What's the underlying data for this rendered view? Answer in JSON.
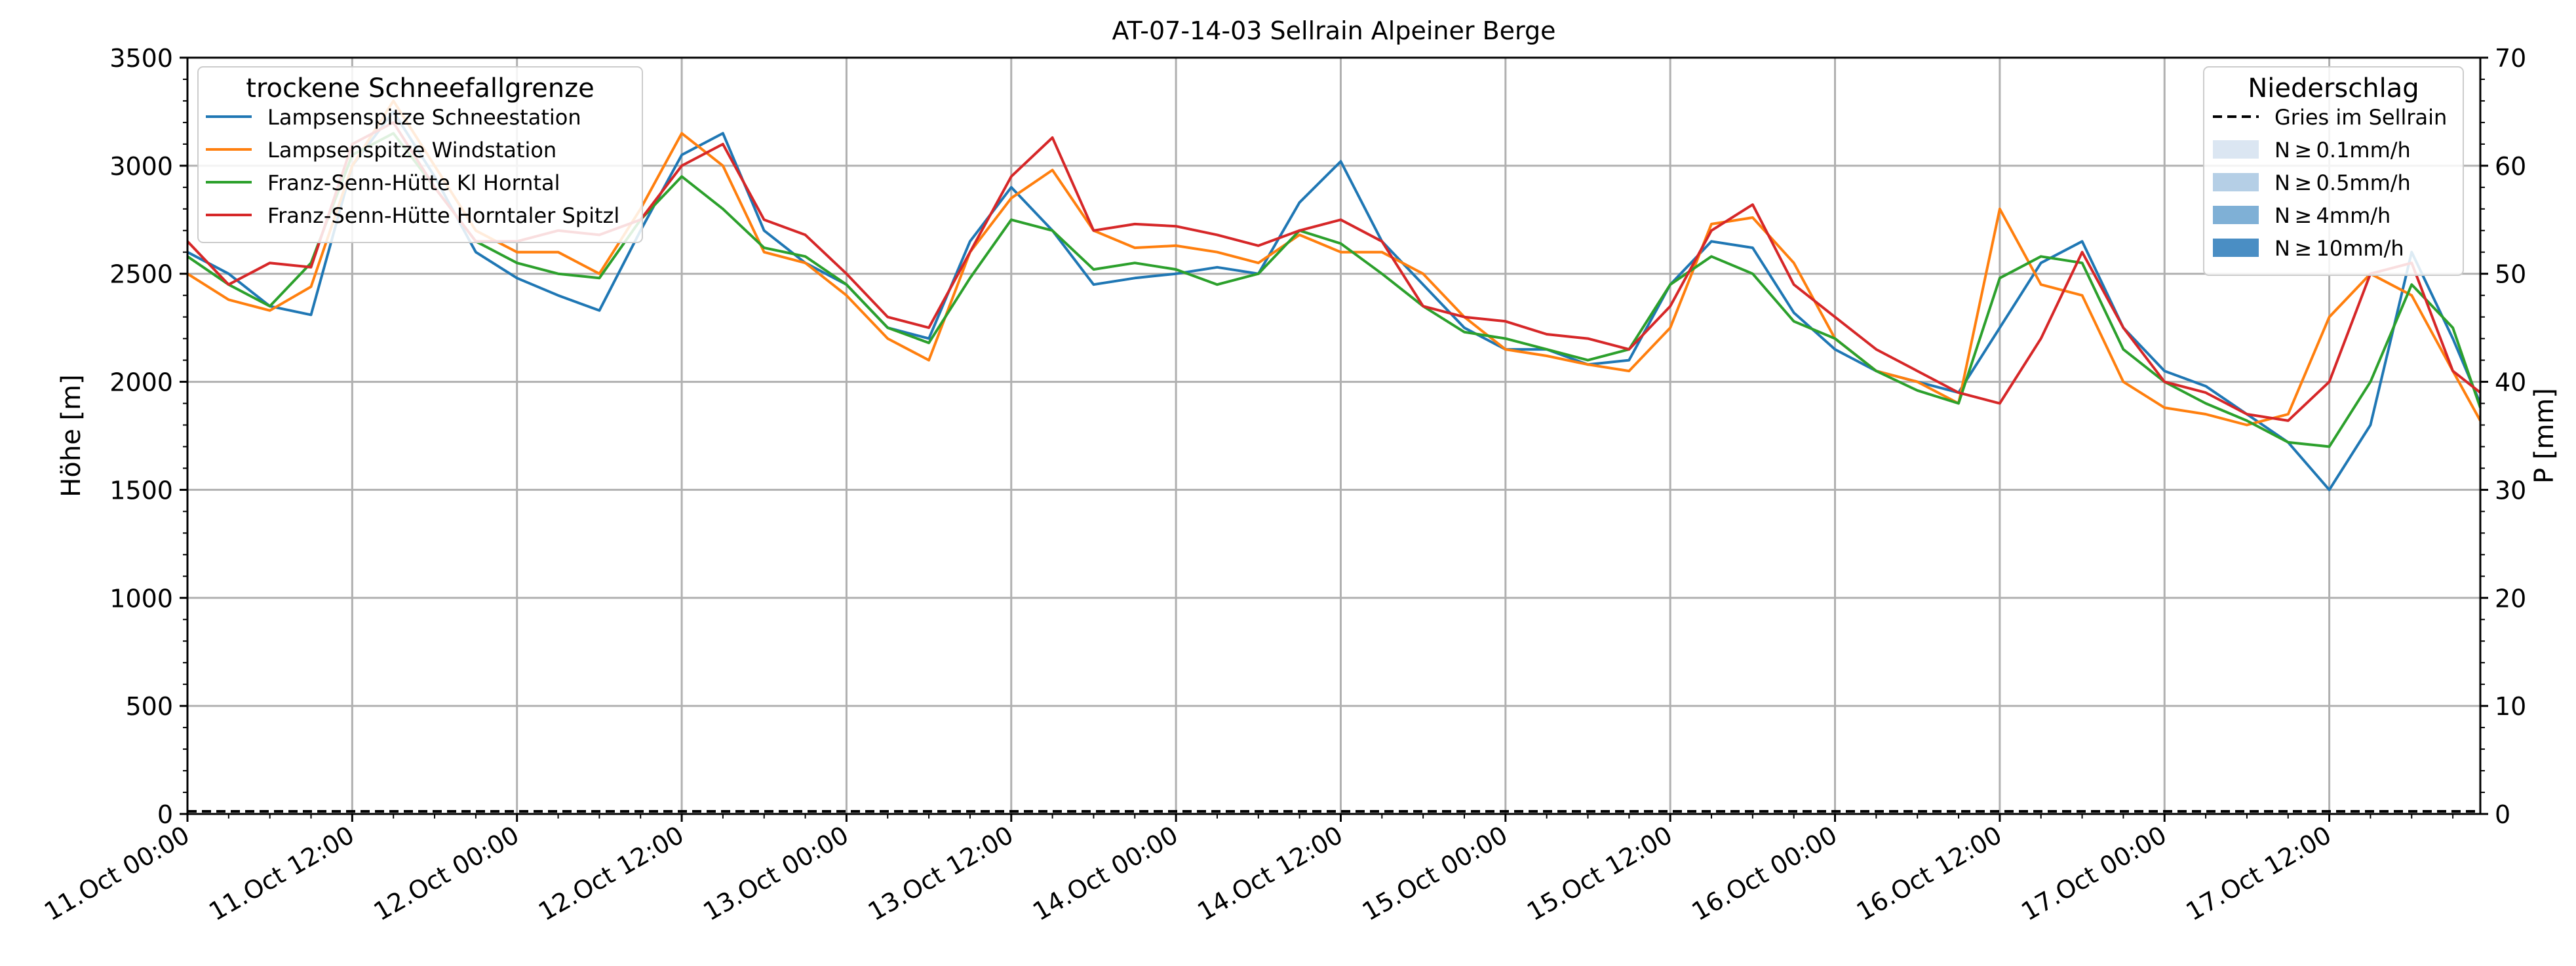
{
  "chart_data": {
    "type": "line",
    "title": "AT-07-14-03 Sellrain Alpeiner Berge",
    "ylabel": "Höhe [m]",
    "ylabel_right": "P [mm]",
    "ylim": [
      0,
      3500
    ],
    "ylim_right": [
      0,
      70
    ],
    "xlim": [
      "2023-10-11 00:00",
      "2023-10-17 23:00"
    ],
    "y_ticks": [
      "0",
      "500",
      "1000",
      "1500",
      "2000",
      "2500",
      "3000",
      "3500"
    ],
    "y_right_ticks": [
      "0",
      "10",
      "20",
      "30",
      "40",
      "50",
      "60",
      "70"
    ],
    "x_ticks": [
      "11.Oct 00:00",
      "11.Oct 12:00",
      "12.Oct 00:00",
      "12.Oct 12:00",
      "13.Oct 00:00",
      "13.Oct 12:00",
      "14.Oct 00:00",
      "14.Oct 12:00",
      "15.Oct 00:00",
      "15.Oct 12:00",
      "16.Oct 00:00",
      "16.Oct 12:00",
      "17.Oct 00:00",
      "17.Oct 12:00"
    ],
    "grid": true,
    "legend": {
      "title": "trockene Schneefallgrenze",
      "placement": "upper-left"
    },
    "legend_right": {
      "title": "Niederschlag",
      "placement": "upper-right",
      "items": [
        {
          "label": "Gries im Sellrain",
          "style": "dashed-line",
          "color": "#000000"
        },
        {
          "label": "N ≥ 0.1mm/h",
          "style": "patch",
          "color": "#dbe6f2"
        },
        {
          "label": "N ≥ 0.5mm/h",
          "style": "patch",
          "color": "#b5cfe6"
        },
        {
          "label": "N ≥ 4mm/h",
          "style": "patch",
          "color": "#7fb0d6"
        },
        {
          "label": "N ≥ 10mm/h",
          "style": "patch",
          "color": "#4a8ec4"
        }
      ]
    },
    "precipitation": {
      "name": "Gries im Sellrain",
      "x": [
        "2023-10-11 00:00",
        "2023-10-17 23:00"
      ],
      "values": [
        0,
        0
      ]
    },
    "series": [
      {
        "name": "Lampsenspitze Schneestation",
        "color": "#1f77b4",
        "x": [
          "2023-10-11 00:00",
          "2023-10-11 03:00",
          "2023-10-11 06:00",
          "2023-10-11 09:00",
          "2023-10-11 12:00",
          "2023-10-11 15:00",
          "2023-10-11 18:00",
          "2023-10-11 21:00",
          "2023-10-12 00:00",
          "2023-10-12 03:00",
          "2023-10-12 06:00",
          "2023-10-12 09:00",
          "2023-10-12 12:00",
          "2023-10-12 15:00",
          "2023-10-12 18:00",
          "2023-10-12 21:00",
          "2023-10-13 00:00",
          "2023-10-13 03:00",
          "2023-10-13 06:00",
          "2023-10-13 09:00",
          "2023-10-13 12:00",
          "2023-10-13 15:00",
          "2023-10-13 18:00",
          "2023-10-13 21:00",
          "2023-10-14 00:00",
          "2023-10-14 03:00",
          "2023-10-14 06:00",
          "2023-10-14 09:00",
          "2023-10-14 12:00",
          "2023-10-14 15:00",
          "2023-10-14 18:00",
          "2023-10-14 21:00",
          "2023-10-15 00:00",
          "2023-10-15 03:00",
          "2023-10-15 06:00",
          "2023-10-15 09:00",
          "2023-10-15 12:00",
          "2023-10-15 15:00",
          "2023-10-15 18:00",
          "2023-10-15 21:00",
          "2023-10-16 00:00",
          "2023-10-16 03:00",
          "2023-10-16 06:00",
          "2023-10-16 09:00",
          "2023-10-16 12:00",
          "2023-10-16 15:00",
          "2023-10-16 18:00",
          "2023-10-16 21:00",
          "2023-10-17 00:00",
          "2023-10-17 03:00",
          "2023-10-17 06:00",
          "2023-10-17 09:00",
          "2023-10-17 12:00",
          "2023-10-17 15:00",
          "2023-10-17 18:00",
          "2023-10-17 21:00",
          "2023-10-17 23:00"
        ],
        "values": [
          2600,
          2500,
          2350,
          2310,
          3000,
          3250,
          2950,
          2600,
          2480,
          2400,
          2330,
          2700,
          3050,
          3150,
          2700,
          2550,
          2450,
          2250,
          2200,
          2650,
          2900,
          2700,
          2450,
          2480,
          2500,
          2530,
          2500,
          2830,
          3020,
          2650,
          2450,
          2250,
          2150,
          2150,
          2080,
          2100,
          2450,
          2650,
          2620,
          2320,
          2150,
          2050,
          2000,
          1950,
          2250,
          2550,
          2650,
          2250,
          2050,
          1980,
          1850,
          1720,
          1500,
          1800,
          2600,
          2200,
          1900
        ]
      },
      {
        "name": "Lampsenspitze Windstation",
        "color": "#ff7f0e",
        "x": [
          "2023-10-11 00:00",
          "2023-10-11 03:00",
          "2023-10-11 06:00",
          "2023-10-11 09:00",
          "2023-10-11 12:00",
          "2023-10-11 15:00",
          "2023-10-11 18:00",
          "2023-10-11 21:00",
          "2023-10-12 00:00",
          "2023-10-12 03:00",
          "2023-10-12 06:00",
          "2023-10-12 09:00",
          "2023-10-12 12:00",
          "2023-10-12 15:00",
          "2023-10-12 18:00",
          "2023-10-12 21:00",
          "2023-10-13 00:00",
          "2023-10-13 03:00",
          "2023-10-13 06:00",
          "2023-10-13 09:00",
          "2023-10-13 12:00",
          "2023-10-13 15:00",
          "2023-10-13 18:00",
          "2023-10-13 21:00",
          "2023-10-14 00:00",
          "2023-10-14 03:00",
          "2023-10-14 06:00",
          "2023-10-14 09:00",
          "2023-10-14 12:00",
          "2023-10-14 15:00",
          "2023-10-14 18:00",
          "2023-10-14 21:00",
          "2023-10-15 00:00",
          "2023-10-15 03:00",
          "2023-10-15 06:00",
          "2023-10-15 09:00",
          "2023-10-15 12:00",
          "2023-10-15 15:00",
          "2023-10-15 18:00",
          "2023-10-15 21:00",
          "2023-10-16 00:00",
          "2023-10-16 03:00",
          "2023-10-16 06:00",
          "2023-10-16 09:00",
          "2023-10-16 12:00",
          "2023-10-16 15:00",
          "2023-10-16 18:00",
          "2023-10-16 21:00",
          "2023-10-17 00:00",
          "2023-10-17 03:00",
          "2023-10-17 06:00",
          "2023-10-17 09:00",
          "2023-10-17 12:00",
          "2023-10-17 15:00",
          "2023-10-17 18:00",
          "2023-10-17 21:00",
          "2023-10-17 23:00"
        ],
        "values": [
          2500,
          2380,
          2330,
          2440,
          3000,
          3300,
          3000,
          2700,
          2600,
          2600,
          2500,
          2800,
          3150,
          3000,
          2600,
          2550,
          2400,
          2200,
          2100,
          2600,
          2850,
          2980,
          2700,
          2620,
          2630,
          2600,
          2550,
          2680,
          2600,
          2600,
          2500,
          2300,
          2150,
          2120,
          2080,
          2050,
          2250,
          2730,
          2760,
          2550,
          2200,
          2050,
          2000,
          1900,
          2800,
          2450,
          2400,
          2000,
          1880,
          1850,
          1800,
          1850,
          2300,
          2500,
          2400,
          2050,
          1820
        ]
      },
      {
        "name": "Franz-Senn-Hütte Kl Horntal",
        "color": "#2ca02c",
        "x": [
          "2023-10-11 00:00",
          "2023-10-11 03:00",
          "2023-10-11 06:00",
          "2023-10-11 09:00",
          "2023-10-11 12:00",
          "2023-10-11 15:00",
          "2023-10-11 18:00",
          "2023-10-11 21:00",
          "2023-10-12 00:00",
          "2023-10-12 03:00",
          "2023-10-12 06:00",
          "2023-10-12 09:00",
          "2023-10-12 12:00",
          "2023-10-12 15:00",
          "2023-10-12 18:00",
          "2023-10-12 21:00",
          "2023-10-13 00:00",
          "2023-10-13 03:00",
          "2023-10-13 06:00",
          "2023-10-13 09:00",
          "2023-10-13 12:00",
          "2023-10-13 15:00",
          "2023-10-13 18:00",
          "2023-10-13 21:00",
          "2023-10-14 00:00",
          "2023-10-14 03:00",
          "2023-10-14 06:00",
          "2023-10-14 09:00",
          "2023-10-14 12:00",
          "2023-10-14 15:00",
          "2023-10-14 18:00",
          "2023-10-14 21:00",
          "2023-10-15 00:00",
          "2023-10-15 03:00",
          "2023-10-15 06:00",
          "2023-10-15 09:00",
          "2023-10-15 12:00",
          "2023-10-15 15:00",
          "2023-10-15 18:00",
          "2023-10-15 21:00",
          "2023-10-16 00:00",
          "2023-10-16 03:00",
          "2023-10-16 06:00",
          "2023-10-16 09:00",
          "2023-10-16 12:00",
          "2023-10-16 15:00",
          "2023-10-16 18:00",
          "2023-10-16 21:00",
          "2023-10-17 00:00",
          "2023-10-17 03:00",
          "2023-10-17 06:00",
          "2023-10-17 09:00",
          "2023-10-17 12:00",
          "2023-10-17 15:00",
          "2023-10-17 18:00",
          "2023-10-17 21:00",
          "2023-10-17 23:00"
        ],
        "values": [
          2580,
          2450,
          2350,
          2550,
          3050,
          3150,
          2900,
          2650,
          2550,
          2500,
          2480,
          2750,
          2950,
          2800,
          2620,
          2580,
          2450,
          2250,
          2180,
          2480,
          2750,
          2700,
          2520,
          2550,
          2520,
          2450,
          2500,
          2700,
          2640,
          2500,
          2350,
          2230,
          2200,
          2150,
          2100,
          2150,
          2450,
          2580,
          2500,
          2280,
          2200,
          2050,
          1960,
          1900,
          2480,
          2580,
          2550,
          2150,
          2000,
          1900,
          1820,
          1720,
          1700,
          2000,
          2450,
          2250,
          1880
        ]
      },
      {
        "name": "Franz-Senn-Hütte Horntaler Spitzl",
        "color": "#d62728",
        "x": [
          "2023-10-11 00:00",
          "2023-10-11 03:00",
          "2023-10-11 06:00",
          "2023-10-11 09:00",
          "2023-10-11 12:00",
          "2023-10-11 15:00",
          "2023-10-11 18:00",
          "2023-10-11 21:00",
          "2023-10-12 00:00",
          "2023-10-12 03:00",
          "2023-10-12 06:00",
          "2023-10-12 09:00",
          "2023-10-12 12:00",
          "2023-10-12 15:00",
          "2023-10-12 18:00",
          "2023-10-12 21:00",
          "2023-10-13 00:00",
          "2023-10-13 03:00",
          "2023-10-13 06:00",
          "2023-10-13 09:00",
          "2023-10-13 12:00",
          "2023-10-13 15:00",
          "2023-10-13 18:00",
          "2023-10-13 21:00",
          "2023-10-14 00:00",
          "2023-10-14 03:00",
          "2023-10-14 06:00",
          "2023-10-14 09:00",
          "2023-10-14 12:00",
          "2023-10-14 15:00",
          "2023-10-14 18:00",
          "2023-10-14 21:00",
          "2023-10-15 00:00",
          "2023-10-15 03:00",
          "2023-10-15 06:00",
          "2023-10-15 09:00",
          "2023-10-15 12:00",
          "2023-10-15 15:00",
          "2023-10-15 18:00",
          "2023-10-15 21:00",
          "2023-10-16 00:00",
          "2023-10-16 03:00",
          "2023-10-16 06:00",
          "2023-10-16 09:00",
          "2023-10-16 12:00",
          "2023-10-16 15:00",
          "2023-10-16 18:00",
          "2023-10-16 21:00",
          "2023-10-17 00:00",
          "2023-10-17 03:00",
          "2023-10-17 06:00",
          "2023-10-17 09:00",
          "2023-10-17 12:00",
          "2023-10-17 15:00",
          "2023-10-17 18:00",
          "2023-10-17 21:00",
          "2023-10-17 23:00"
        ],
        "values": [
          2650,
          2450,
          2550,
          2530,
          3100,
          3200,
          2900,
          2650,
          2650,
          2700,
          2680,
          2750,
          3000,
          3100,
          2750,
          2680,
          2500,
          2300,
          2250,
          2600,
          2950,
          3130,
          2700,
          2730,
          2720,
          2680,
          2630,
          2700,
          2750,
          2650,
          2350,
          2300,
          2280,
          2220,
          2200,
          2150,
          2350,
          2700,
          2820,
          2450,
          2300,
          2150,
          2050,
          1950,
          1900,
          2200,
          2600,
          2250,
          2000,
          1950,
          1850,
          1820,
          2000,
          2500,
          2550,
          2050,
          1950
        ]
      }
    ]
  }
}
